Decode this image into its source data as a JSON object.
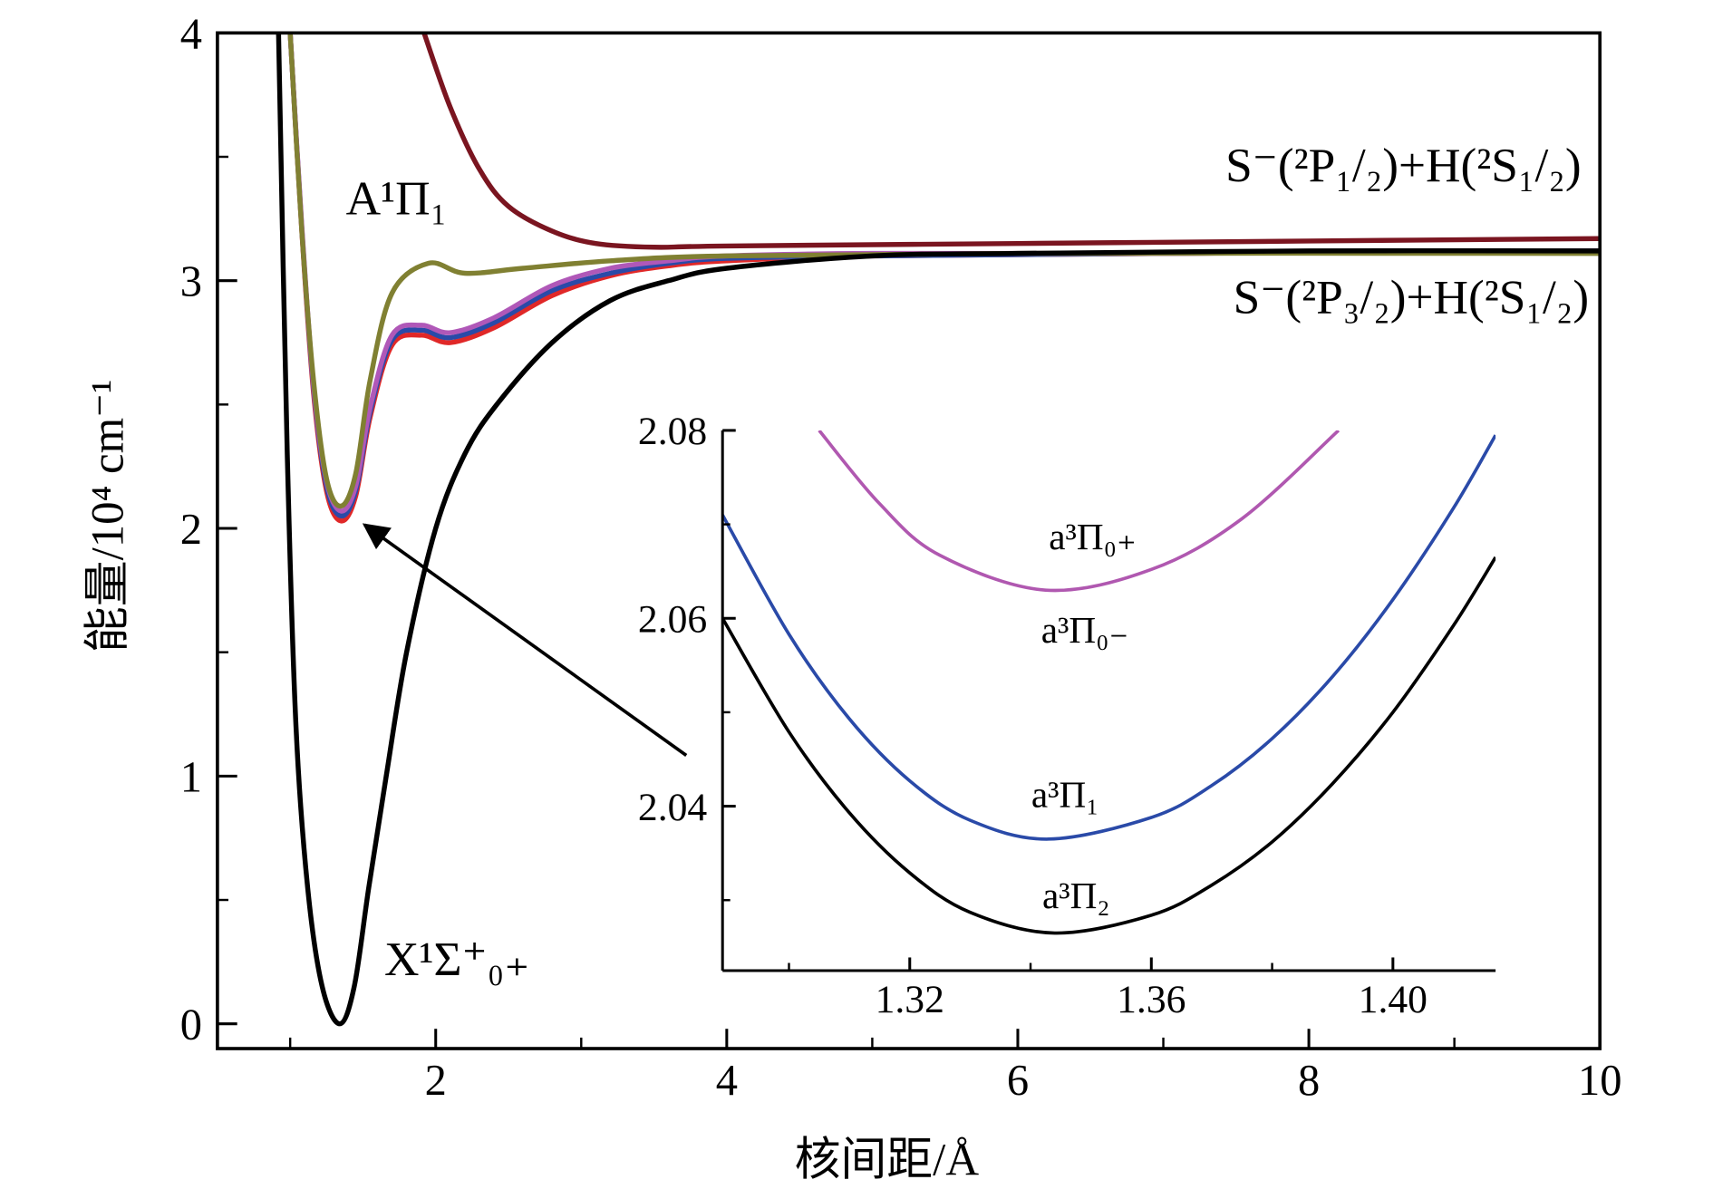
{
  "chart_data": [
    {
      "type": "line",
      "xlabel": "核间距/Å",
      "ylabel": "能量/10⁴ cm⁻¹",
      "xlim": [
        0.5,
        10
      ],
      "ylim": [
        -0.1,
        4
      ],
      "xticks": [
        2,
        4,
        6,
        8,
        10
      ],
      "yticks": [
        0,
        1,
        2,
        3,
        4
      ],
      "xminor": [
        1,
        3,
        5,
        7,
        9
      ],
      "yminor": [
        0.5,
        1.5,
        2.5,
        3.5
      ],
      "series": [
        {
          "color": "#e02828",
          "x": [
            1.0,
            1.08,
            1.16,
            1.25,
            1.35,
            1.45,
            1.55,
            1.7,
            1.9,
            2.1,
            2.4,
            2.8,
            3.2,
            3.6,
            4,
            5,
            7,
            10
          ],
          "values": [
            4,
            3.2,
            2.55,
            2.15,
            2.03,
            2.13,
            2.45,
            2.74,
            2.78,
            2.75,
            2.81,
            2.94,
            3.02,
            3.06,
            3.08,
            3.1,
            3.11,
            3.12
          ]
        },
        {
          "color": "#2a4aa8",
          "x": [
            1.0,
            1.08,
            1.16,
            1.25,
            1.35,
            1.45,
            1.55,
            1.7,
            1.9,
            2.1,
            2.4,
            2.8,
            3.2,
            3.6,
            4,
            5,
            7,
            10
          ],
          "values": [
            4,
            3.21,
            2.57,
            2.17,
            2.05,
            2.15,
            2.47,
            2.76,
            2.8,
            2.77,
            2.83,
            2.96,
            3.03,
            3.07,
            3.09,
            3.1,
            3.11,
            3.12
          ]
        },
        {
          "color": "#b058b8",
          "x": [
            1.0,
            1.08,
            1.16,
            1.25,
            1.35,
            1.45,
            1.55,
            1.7,
            1.9,
            2.1,
            2.4,
            2.8,
            3.2,
            3.6,
            4,
            5,
            7,
            10
          ],
          "values": [
            4,
            3.22,
            2.58,
            2.19,
            2.07,
            2.17,
            2.49,
            2.78,
            2.82,
            2.79,
            2.85,
            2.98,
            3.05,
            3.08,
            3.1,
            3.11,
            3.11,
            3.12
          ]
        },
        {
          "color": "#808032",
          "x": [
            1.0,
            1.08,
            1.16,
            1.25,
            1.35,
            1.45,
            1.55,
            1.7,
            1.95,
            2.2,
            2.6,
            3.2,
            4,
            6,
            10
          ],
          "values": [
            4,
            3.2,
            2.6,
            2.2,
            2.09,
            2.22,
            2.6,
            2.95,
            3.07,
            3.03,
            3.05,
            3.08,
            3.1,
            3.11,
            3.11
          ]
        },
        {
          "color": "#7a1520",
          "x": [
            1.92,
            2.1,
            2.3,
            2.5,
            2.8,
            3.1,
            3.5,
            4,
            6,
            8,
            10
          ],
          "values": [
            4,
            3.7,
            3.45,
            3.3,
            3.2,
            3.15,
            3.135,
            3.14,
            3.15,
            3.16,
            3.17
          ]
        },
        {
          "color": "#000000",
          "x": [
            0.92,
            0.98,
            1.04,
            1.12,
            1.22,
            1.34,
            1.44,
            1.54,
            1.66,
            1.8,
            2.0,
            2.2,
            2.42,
            2.8,
            3.2,
            3.6,
            4,
            5,
            6,
            8,
            10
          ],
          "values": [
            4,
            2.3,
            1.2,
            0.55,
            0.15,
            0,
            0.15,
            0.55,
            1.0,
            1.5,
            2.0,
            2.3,
            2.5,
            2.75,
            2.92,
            3.0,
            3.05,
            3.1,
            3.11,
            3.12,
            3.12
          ]
        }
      ],
      "annotations": [
        {
          "text": "A¹Π₁"
        },
        {
          "text": "X¹Σ⁺₀₊"
        },
        {
          "text": "S⁻(²P₁/₂)+H(²S₁/₂)"
        },
        {
          "text": "S⁻(²P₃/₂)+H(²S₁/₂)"
        }
      ]
    },
    {
      "type": "line",
      "xlim": [
        1.289,
        1.417
      ],
      "ylim": [
        2.0225,
        2.08
      ],
      "xticks": [
        1.32,
        1.36,
        {
          "value": 1.4,
          "label": "1.40"
        }
      ],
      "yticks": [
        2.04,
        2.06,
        2.08
      ],
      "xminor": [
        1.3,
        1.34,
        1.38
      ],
      "yminor": [
        2.03,
        2.05,
        2.07
      ],
      "series": [
        {
          "color": "#b058b0",
          "x": [
            1.305,
            1.315,
            1.325,
            1.3425,
            1.36,
            1.375,
            1.391
          ],
          "values": [
            2.08,
            2.0722,
            2.0667,
            2.063,
            2.0652,
            2.0706,
            2.08
          ]
        },
        {
          "color": "#2a4aa8",
          "x": [
            1.289,
            1.3,
            1.31,
            1.32,
            1.33,
            1.343,
            1.36,
            1.37,
            1.38,
            1.39,
            1.4,
            1.41,
            1.417
          ],
          "values": [
            2.071,
            2.0583,
            2.0493,
            2.0427,
            2.0385,
            2.0365,
            2.0388,
            2.0422,
            2.0472,
            2.0538,
            2.062,
            2.0717,
            2.0795
          ]
        },
        {
          "color": "#000000",
          "x": [
            1.289,
            1.3,
            1.31,
            1.32,
            1.33,
            1.344,
            1.36,
            1.37,
            1.38,
            1.39,
            1.4,
            1.41,
            1.417
          ],
          "values": [
            2.06,
            2.0479,
            2.0393,
            2.0329,
            2.0287,
            2.0265,
            2.0284,
            2.0316,
            2.0362,
            2.0424,
            2.05,
            2.0592,
            2.0665
          ]
        }
      ],
      "annotations": [
        {
          "text": "a³Π₀₊"
        },
        {
          "text": "a³Π₀₋"
        },
        {
          "text": "a³Π₁"
        },
        {
          "text": "a³Π₂"
        }
      ]
    }
  ]
}
